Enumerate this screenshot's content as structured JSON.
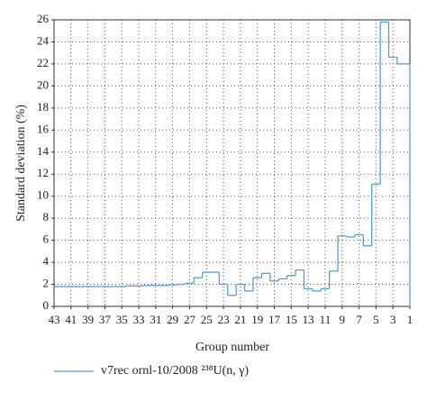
{
  "chart_data": {
    "type": "step",
    "x_label": "Group number",
    "y_label": "Standard deviation (%)",
    "x": [
      43,
      42,
      41,
      40,
      39,
      38,
      37,
      36,
      35,
      34,
      33,
      32,
      31,
      30,
      29,
      28,
      27,
      26,
      25,
      24,
      23,
      22,
      21,
      20,
      19,
      18,
      17,
      16,
      15,
      14,
      13,
      12,
      11,
      10,
      9,
      8,
      7,
      6,
      5,
      4,
      3,
      2,
      1
    ],
    "xlim": [
      43,
      1
    ],
    "xticks": [
      43,
      41,
      39,
      37,
      35,
      33,
      31,
      29,
      27,
      25,
      23,
      21,
      19,
      17,
      15,
      13,
      11,
      9,
      7,
      5,
      3,
      1
    ],
    "ylim": [
      0,
      26
    ],
    "yticks": [
      0,
      2,
      4,
      6,
      8,
      10,
      12,
      14,
      16,
      18,
      20,
      22,
      24,
      26
    ],
    "grid": true,
    "legend": "bottom",
    "series": [
      {
        "name": "v7rec ornl-10/2008 ²³⁸U(n, γ)",
        "color": "#5b9bd5",
        "values": [
          1.8,
          1.8,
          1.8,
          1.8,
          1.8,
          1.8,
          1.8,
          1.8,
          1.8,
          1.85,
          1.85,
          1.9,
          1.9,
          1.9,
          1.95,
          2.0,
          2.1,
          2.6,
          3.1,
          3.1,
          2.0,
          1.0,
          2.0,
          1.4,
          2.6,
          3.0,
          2.3,
          2.5,
          2.8,
          3.3,
          1.6,
          1.4,
          1.6,
          3.2,
          6.4,
          6.3,
          6.5,
          5.5,
          11.1,
          25.8,
          22.6,
          22.0,
          22.0
        ]
      }
    ]
  }
}
